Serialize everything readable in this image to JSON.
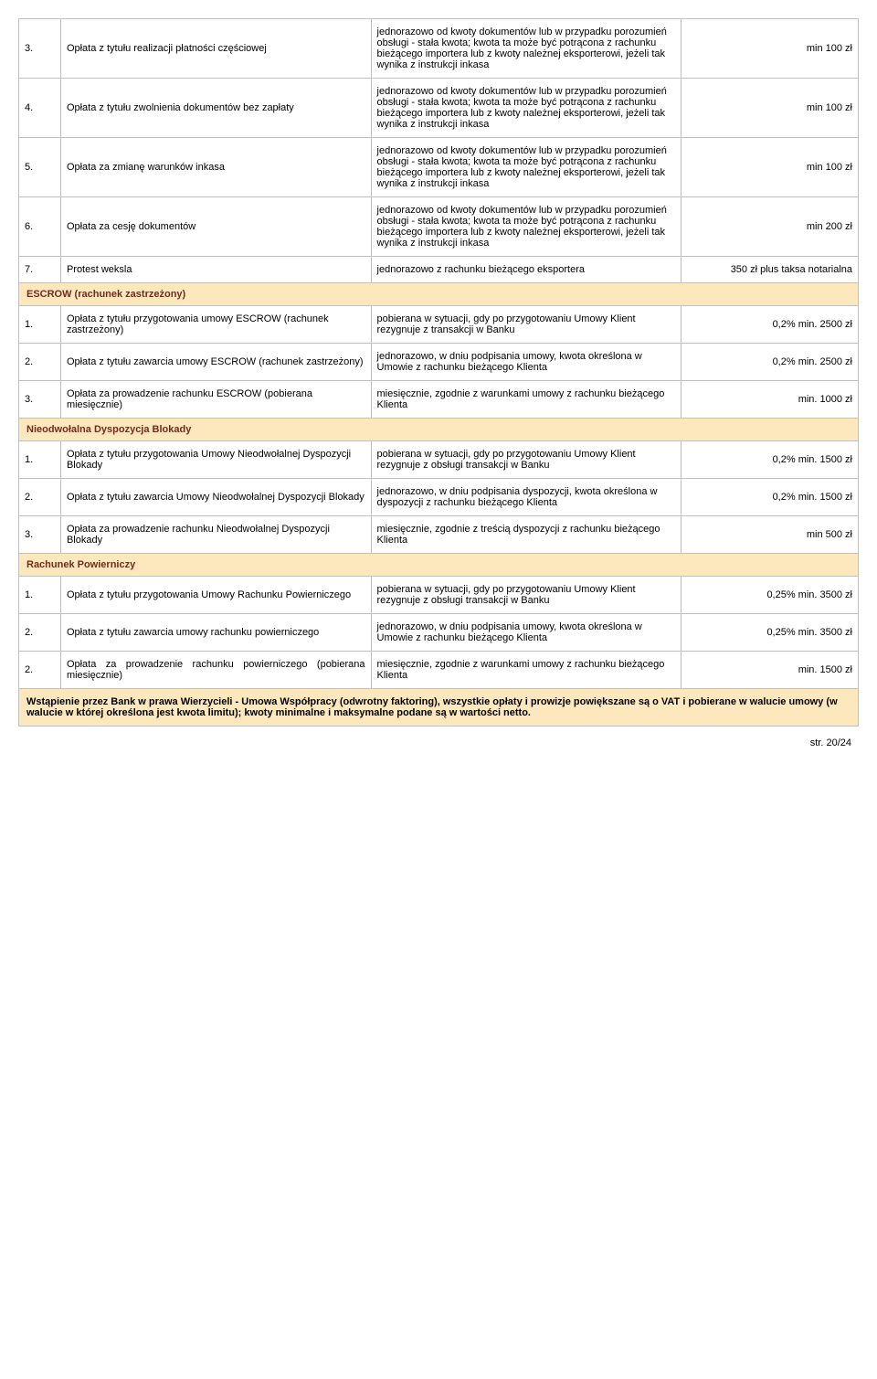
{
  "colors": {
    "section_bg": "#fce8bc",
    "section_fg": "#712c1d",
    "border": "#c0c0c0"
  },
  "rows_top": [
    {
      "num": "3.",
      "name": "Opłata z tytułu realizacji płatności częściowej",
      "desc": "jednorazowo od kwoty dokumentów lub w przypadku porozumień obsługi - stała kwota;  kwota ta może być potrącona z rachunku bieżącego importera lub z kwoty należnej eksporterowi, jeżeli tak wynika z instrukcji inkasa",
      "fee": "min 100 zł"
    },
    {
      "num": "4.",
      "name": "Opłata z tytułu zwolnienia dokumentów bez zapłaty",
      "desc": "jednorazowo od kwoty dokumentów lub w przypadku porozumień obsługi - stała kwota;  kwota ta może być potrącona z rachunku bieżącego importera lub z kwoty należnej eksporterowi, jeżeli tak wynika z instrukcji inkasa",
      "fee": "min 100 zł"
    },
    {
      "num": "5.",
      "name": "Opłata za zmianę warunków inkasa",
      "desc": "jednorazowo od kwoty dokumentów lub w przypadku porozumień obsługi - stała kwota;  kwota ta może być potrącona z rachunku bieżącego importera lub z kwoty należnej eksporterowi, jeżeli tak wynika z instrukcji inkasa",
      "fee": "min 100 zł"
    },
    {
      "num": "6.",
      "name": "Opłata za cesję dokumentów",
      "desc": "jednorazowo od kwoty dokumentów lub w przypadku porozumień obsługi - stała kwota;  kwota ta może być potrącona z rachunku bieżącego importera lub z kwoty należnej eksporterowi, jeżeli tak wynika z instrukcji inkasa",
      "fee": "min 200 zł"
    },
    {
      "num": "7.",
      "name": "Protest weksla",
      "desc": "jednorazowo z rachunku bieżącego eksportera",
      "fee": "350 zł  plus taksa notarialna"
    }
  ],
  "sections": [
    {
      "title": "ESCROW (rachunek zastrzeżony)",
      "rows": [
        {
          "num": "1.",
          "name": "Opłata z tytułu przygotowania umowy ESCROW  (rachunek zastrzeżony)",
          "desc": "pobierana w sytuacji, gdy po przygotowaniu Umowy Klient rezygnuje z transakcji w Banku",
          "fee": "0,2%  min. 2500 zł"
        },
        {
          "num": "2.",
          "name": "Opłata z tytułu zawarcia umowy ESCROW (rachunek zastrzeżony)",
          "desc": "jednorazowo, w dniu podpisania umowy, kwota określona w Umowie  z rachunku bieżącego Klienta",
          "fee": "0,2%  min. 2500 zł"
        },
        {
          "num": "3.",
          "name": "Opłata za prowadzenie rachunku ESCROW (pobierana miesięcznie)",
          "desc": "miesięcznie, zgodnie z warunkami umowy z rachunku bieżącego Klienta",
          "fee": "min. 1000 zł"
        }
      ]
    },
    {
      "title": "Nieodwołalna Dyspozycja Blokady",
      "rows": [
        {
          "num": "1.",
          "name": "Opłata z tytułu przygotowania  Umowy Nieodwołalnej Dyspozycji Blokady",
          "desc": "pobierana w sytuacji, gdy po przygotowaniu Umowy Klient rezygnuje z obsługi transakcji w Banku",
          "fee": "0,2%  min. 1500 zł"
        },
        {
          "num": "2.",
          "name": "Opłata z tytułu zawarcia Umowy Nieodwołalnej Dyspozycji Blokady",
          "desc": "jednorazowo, w dniu podpisania dyspozycji, kwota określona w dyspozycji z rachunku bieżącego Klienta",
          "fee": "0,2%  min. 1500 zł"
        },
        {
          "num": "3.",
          "name": "Opłata za prowadzenie rachunku Nieodwołalnej Dyspozycji Blokady",
          "desc": "miesięcznie, zgodnie z treścią dyspozycji z rachunku bieżącego Klienta",
          "fee": "min 500 zł"
        }
      ]
    },
    {
      "title": "Rachunek Powierniczy",
      "rows": [
        {
          "num": "1.",
          "name": "Opłata z tytułu przygotowania Umowy Rachunku Powierniczego",
          "desc": "pobierana w sytuacji, gdy po przygotowaniu Umowy Klient rezygnuje z obsługi transakcji w Banku",
          "fee": "0,25%  min. 3500 zł"
        },
        {
          "num": "2.",
          "name": "Opłata z tytułu zawarcia umowy rachunku powierniczego",
          "desc": "jednorazowo, w dniu podpisania umowy, kwota określona w Umowie  z rachunku bieżącego Klienta",
          "fee": "0,25%  min. 3500 zł"
        },
        {
          "num": "2.",
          "name": "Opłata za prowadzenie rachunku powierniczego (pobierana miesięcznie)",
          "desc": "miesięcznie, zgodnie z warunkami umowy z rachunku bieżącego Klienta",
          "fee": "min. 1500 zł",
          "name_justify": true
        }
      ]
    }
  ],
  "footnote": "Wstąpienie przez Bank w prawa Wierzycieli  - Umowa Współpracy (odwrotny faktoring),  wszystkie opłaty i prowizje powiększane są o VAT i pobierane w walucie umowy (w walucie w której określona jest kwota limitu); kwoty minimalne i maksymalne podane są w wartości netto.",
  "page_footer": "str. 20/24"
}
